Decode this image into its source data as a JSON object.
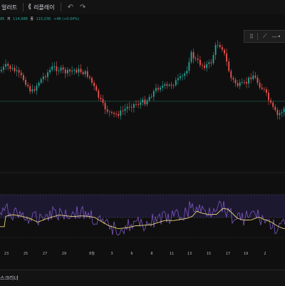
{
  "toolbar": {
    "alert_label": "얼러트",
    "replay_label": "리플레이",
    "undo_icon": "undo-icon",
    "redo_icon": "redo-icon"
  },
  "legend": {
    "partial_value": "95",
    "low_label": "저",
    "low_value": "114,988",
    "close_label": "종",
    "close_value": "115,036",
    "change": "+48 (+0.04%)"
  },
  "xaxis": {
    "labels": [
      "23",
      "25",
      "27",
      "29",
      "8월",
      "3",
      "6",
      "8",
      "11",
      "13",
      "15",
      "17",
      "19",
      "2"
    ]
  },
  "bottom": {
    "label": "스크리너"
  },
  "drawing_tools": [
    "grip-icon",
    "trendline-icon",
    "horizontal-ray-icon"
  ],
  "colors": {
    "up": "#26a69a",
    "down": "#ef5350",
    "rsi_line": "#7e57c2",
    "rsi_ma": "#e6d27a",
    "rsi_band": "#1f1a33"
  }
}
